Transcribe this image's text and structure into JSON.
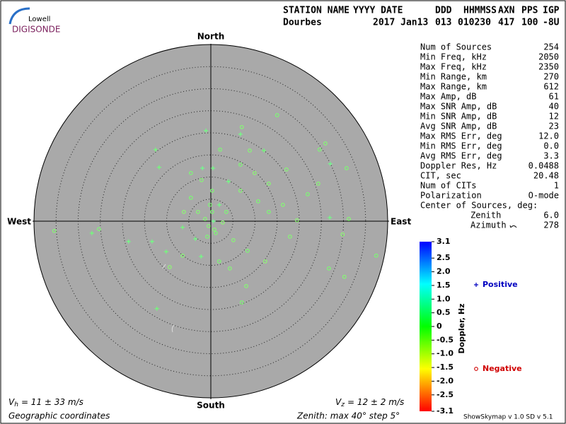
{
  "chart_data": {
    "type": "polar-scatter",
    "logo": {
      "top": "Lowell",
      "bottom": "DIGISONDE"
    },
    "header": [
      {
        "label": "STATION NAME",
        "value": "Dourbes"
      },
      {
        "label": "YYYY DATE",
        "value": "2017 Jan13"
      },
      {
        "label": "DDD",
        "value": "013"
      },
      {
        "label": "HHMMSS",
        "value": "010230"
      },
      {
        "label": "AXN",
        "value": "417"
      },
      {
        "label": "PPS",
        "value": "100"
      },
      {
        "label": "IGP",
        "value": "-8U"
      }
    ],
    "directions": {
      "north": "North",
      "south": "South",
      "east": "East",
      "west": "West"
    },
    "rlim": [
      0,
      40
    ],
    "rticks": [
      5,
      10,
      15,
      20,
      25,
      30,
      35,
      40
    ],
    "series": [
      {
        "name": "Positive",
        "marker": "+",
        "color": "#0000c0",
        "x": [
          -1.1,
          -12.5,
          0.5,
          -1.9,
          -11.7,
          4.0,
          6.7,
          12.0,
          27.0,
          26.9,
          -26.9,
          -18.6,
          -13.3,
          -12.2,
          -2.2,
          0.6,
          -6.4,
          -3.5,
          1.9,
          -10.1
        ],
        "y": [
          20.5,
          16.2,
          12.0,
          12.0,
          12.2,
          9.0,
          19.7,
          16.0,
          13.0,
          0.8,
          -2.7,
          -4.6,
          -4.6,
          -19.8,
          -8.0,
          0.0,
          -1.4,
          -4.0,
          3.7,
          -6.9
        ],
        "doppler": [
          0.2,
          0.1,
          0.2,
          0.3,
          0.1,
          0.2,
          0.2,
          0.1,
          0.3,
          0.2,
          0.1,
          0.2,
          0.2,
          0.1,
          0.2,
          0.3,
          0.1,
          0.2,
          0.2,
          0.1
        ]
      },
      {
        "name": "Negative",
        "marker": "o",
        "color": "#d00000",
        "x": [
          15.0,
          7.0,
          2.1,
          8.8,
          6.7,
          9.9,
          17.1,
          24.6,
          25.9,
          30.7,
          31.2,
          29.8,
          37.4,
          30.2,
          26.7,
          8.0,
          7.0,
          -35.4,
          -25.3,
          -9.3,
          -6.4,
          1.9,
          4.3,
          13.1,
          16.3,
          19.5,
          21.9,
          24.3,
          0.3,
          -0.5,
          1.1,
          -1.3,
          2.7,
          3.5,
          -2.9,
          -4.5,
          5.1,
          8.3,
          12.3,
          17.9,
          -4.5,
          -2.1,
          0.3,
          6.7,
          10.7,
          13.1,
          -6.1,
          -0.2,
          0.8,
          -0.8
        ],
        "y": [
          24.0,
          21.3,
          16.2,
          16.0,
          12.8,
          10.9,
          11.7,
          16.2,
          17.6,
          12.0,
          0.5,
          -3.0,
          -7.8,
          -12.6,
          -10.7,
          -14.7,
          -18.4,
          -2.2,
          -1.8,
          -10.4,
          -7.8,
          -9.1,
          -10.7,
          2.1,
          3.7,
          0.2,
          6.1,
          8.5,
          2.1,
          -1.1,
          -2.7,
          0.5,
          -0.3,
          2.1,
          2.1,
          5.3,
          -4.3,
          -6.7,
          -9.1,
          -3.5,
          10.9,
          9.3,
          6.9,
          6.9,
          4.5,
          8.5,
          2.1,
          3.7,
          -1.9,
          -3.5
        ],
        "doppler": [
          -0.1,
          -0.2,
          -0.1,
          -0.2,
          -0.1,
          -0.3,
          -0.2,
          -0.1,
          -0.2,
          -0.1,
          -0.2,
          -0.3,
          -0.1,
          -0.2,
          -0.1,
          -0.2,
          -0.1,
          -0.2,
          -0.1,
          -0.3,
          -0.2,
          -0.1,
          -0.2,
          -0.1,
          -0.2,
          -0.3,
          -0.1,
          -0.2,
          -0.1,
          -0.2,
          -0.1,
          -0.2,
          -0.3,
          -0.1,
          -0.2,
          -0.1,
          -0.2,
          -0.1,
          -0.3,
          -0.2,
          -0.1,
          -0.2,
          -0.1,
          -0.2,
          -0.1,
          -0.2,
          -0.3,
          -0.1,
          -0.2,
          -0.1
        ]
      }
    ],
    "colorbar": {
      "label": "Doppler, Hz",
      "lim": [
        -3.1,
        3.1
      ],
      "ticks": [
        3.1,
        2.5,
        {
          "value": 2,
          "label": "2.0"
        },
        1.5,
        {
          "value": 1,
          "label": "1.0"
        },
        0.5,
        0,
        -0.5,
        {
          "value": -1,
          "label": "-1.0"
        },
        -1.5,
        {
          "value": -2,
          "label": "-2.0"
        },
        -2.5,
        -3.1
      ]
    },
    "stats": [
      {
        "label": "Num of Sources",
        "value": "254"
      },
      {
        "label": "Min Freq, kHz",
        "value": "2050"
      },
      {
        "label": "Max Freq, kHz",
        "value": "2350"
      },
      {
        "label": "Min Range, km",
        "value": "270"
      },
      {
        "label": "Max Range, km",
        "value": "612"
      },
      {
        "label": "Max Amp, dB",
        "value": "61"
      },
      {
        "label": "Max SNR Amp, dB",
        "value": "40"
      },
      {
        "label": "Min SNR Amp, dB",
        "value": "12"
      },
      {
        "label": "Avg SNR Amp, dB",
        "value": "23"
      },
      {
        "label": "Max RMS Err, deg",
        "value": "12.0"
      },
      {
        "label": "Min RMS Err, deg",
        "value": "0.0"
      },
      {
        "label": "Avg RMS Err, deg",
        "value": "3.3"
      },
      {
        "label": "Doppler Res, Hz",
        "value": "0.0488"
      },
      {
        "label": "CIT, sec",
        "value": "20.48"
      },
      {
        "label": "Num of CITs",
        "value": "1"
      },
      {
        "label": "Polarization",
        "value": "O-mode"
      }
    ],
    "center": {
      "title": "Center of Sources, deg:",
      "zenith_label": "Zenith",
      "zenith": "6.0",
      "azimuth_label": "Azimuth",
      "azimuth": "278"
    },
    "footer": {
      "vh": {
        "symbol": "V",
        "subscript": "h",
        "text": "= 11 ± 33 m/s"
      },
      "vz": {
        "symbol": "V",
        "subscript": "z",
        "text": "= 12 ± 2 m/s"
      },
      "coords": "Geographic coordinates",
      "zenith": "Zenith: max 40°  step 5°",
      "version": "ShowSkymap v 1.0  SD v 5.1"
    }
  }
}
